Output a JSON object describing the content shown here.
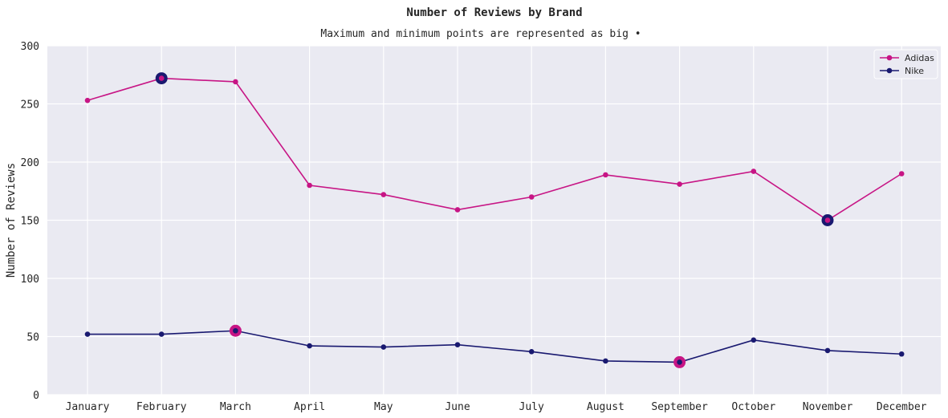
{
  "chart_data": {
    "type": "line",
    "title": "Number of Reviews by Brand",
    "subtitle": "Maximum and minimum points are represented as big •",
    "xlabel": "",
    "ylabel": "Number of Reviews",
    "ylim": [
      0,
      300
    ],
    "yticks": [
      0,
      50,
      100,
      150,
      200,
      250,
      300
    ],
    "grid": true,
    "legend_position": "top-right",
    "categories": [
      "January",
      "February",
      "March",
      "April",
      "May",
      "June",
      "July",
      "August",
      "September",
      "October",
      "November",
      "December"
    ],
    "series": [
      {
        "name": "Adidas",
        "color": "#c71585",
        "values": [
          253,
          272,
          269,
          180,
          172,
          159,
          170,
          189,
          181,
          192,
          150,
          190
        ],
        "highlight": {
          "max_month": "February",
          "min_month": "November",
          "highlight_color": "#191970"
        }
      },
      {
        "name": "Nike",
        "color": "#191970",
        "values": [
          52,
          52,
          55,
          42,
          41,
          43,
          37,
          29,
          28,
          47,
          38,
          35
        ],
        "highlight": {
          "max_month": "March",
          "min_month": "September",
          "highlight_color": "#c71585"
        }
      }
    ],
    "plot_background": "#eaeaf2",
    "grid_color": "#ffffff"
  }
}
